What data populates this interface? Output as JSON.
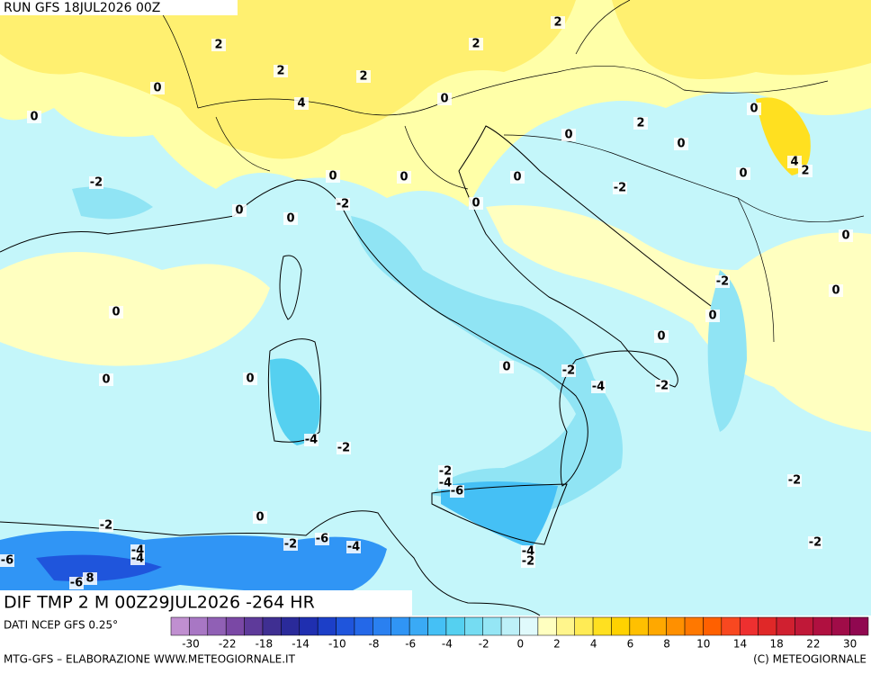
{
  "header": {
    "run": "RUN GFS 18JUL2026 00Z"
  },
  "map": {
    "title": "DIF TMP 2 M 00Z29JUL2026 -264 HR",
    "contour_labels": [
      "2",
      "2",
      "2",
      "2",
      "2",
      "0",
      "4",
      "0",
      "0",
      "0",
      "2",
      "0",
      "0",
      "4",
      "2",
      "0",
      "-2",
      "0",
      "0",
      "0",
      "-2",
      "0",
      "-2",
      "0",
      "0",
      "0",
      "-2",
      "0",
      "0",
      "0",
      "0",
      "0",
      "0",
      "0",
      "-2",
      "-4",
      "-2",
      "-4",
      "-2",
      "-2",
      "-4",
      "-6",
      "-2",
      "0",
      "-2",
      "-4",
      "-4",
      "-6",
      "-2",
      "-4",
      "-2",
      "-6",
      "-6",
      "8",
      "-4",
      "-2"
    ]
  },
  "footer": {
    "source": "DATI NCEP GFS 0.25°",
    "credit_left": "MTG-GFS – ELABORAZIONE WWW.METEOGIORNALE.IT",
    "credit_right": "(C) METEOGIORNALE"
  },
  "colorbar": {
    "labels": [
      "-30",
      "-22",
      "-18",
      "-14",
      "-10",
      "-8",
      "-6",
      "-4",
      "-2",
      "0",
      "2",
      "4",
      "6",
      "8",
      "10",
      "14",
      "18",
      "22",
      "30"
    ],
    "colors": [
      "#c08fd0",
      "#a877c4",
      "#9060b5",
      "#7a48a5",
      "#5e3a9a",
      "#3f2f92",
      "#2a2a9a",
      "#1f2fb0",
      "#1c3fc8",
      "#1f55dc",
      "#2468e8",
      "#2a80f0",
      "#3095f5",
      "#3aaaf5",
      "#45c0f5",
      "#55d0f0",
      "#75dcf2",
      "#95e6f5",
      "#bdf0f8",
      "#e0fafc",
      "#ffffc0",
      "#fff58c",
      "#ffeb55",
      "#ffe020",
      "#ffd200",
      "#ffc000",
      "#ffa800",
      "#ff9000",
      "#ff7800",
      "#ff6000",
      "#f84820",
      "#ee3030",
      "#e02828",
      "#d02030",
      "#c01838",
      "#b01040",
      "#a00c48",
      "#900850"
    ]
  }
}
